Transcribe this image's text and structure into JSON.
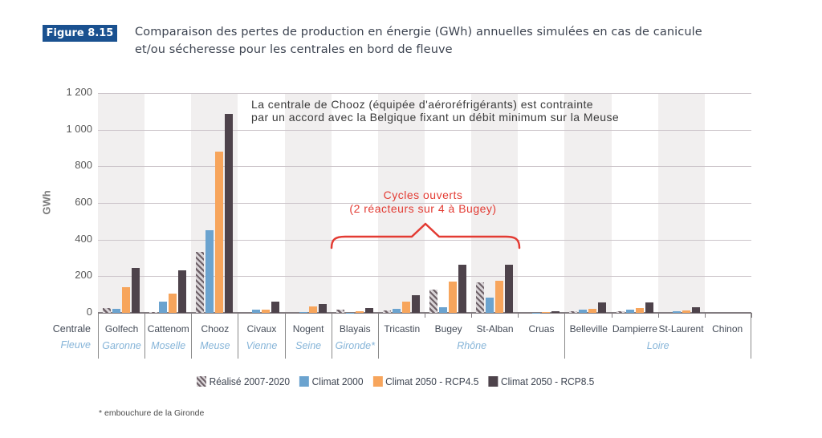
{
  "figure": {
    "label": "Figure 8.15",
    "title_line1": "Comparaison des pertes de production en énergie (GWh) annuelles simulées en cas de canicule",
    "title_line2": "et/ou sécheresse pour les centrales en bord de fleuve"
  },
  "annotations": {
    "chooz_line1": "La centrale de Chooz (équipée d'aéroréfrigérants) est contrainte",
    "chooz_line2": "par un accord avec la Belgique fixant un débit minimum sur la Meuse",
    "cycles_line1": "Cycles ouverts",
    "cycles_line2": "(2 réacteurs sur 4 à Bugey)"
  },
  "axis_header": {
    "top": "Centrale",
    "bottom": "Fleuve"
  },
  "footnote": "* embouchure de la Gironde",
  "colors": {
    "badge_blue": "#1a5190",
    "climat2000_blue": "#6ba3cf",
    "rcp45_orange": "#f7a55c",
    "rcp85_dark": "#4e434b",
    "hatch_dark": "#6e6168",
    "hatch_light": "#d9d4d7",
    "annotation_red": "#e33b33",
    "river_blue": "#85b4d8"
  },
  "chart_data": {
    "type": "bar",
    "ylabel": "GWh",
    "ylim": [
      0,
      1200
    ],
    "ytick_labels": [
      "1 200",
      "1 000",
      "800",
      "600",
      "400",
      "200",
      "0"
    ],
    "ytick_values": [
      1200,
      1000,
      800,
      600,
      400,
      200,
      0
    ],
    "categories": [
      "Golfech",
      "Cattenom",
      "Chooz",
      "Civaux",
      "Nogent",
      "Blayais",
      "Tricastin",
      "Bugey",
      "St-Alban",
      "Cruas",
      "Belleville",
      "Dampierre",
      "St-Laurent",
      "Chinon"
    ],
    "groups": [
      {
        "river": "Garonne",
        "start": 0,
        "count": 1
      },
      {
        "river": "Moselle",
        "start": 1,
        "count": 1
      },
      {
        "river": "Meuse",
        "start": 2,
        "count": 1
      },
      {
        "river": "Vienne",
        "start": 3,
        "count": 1
      },
      {
        "river": "Seine",
        "start": 4,
        "count": 1
      },
      {
        "river": "Gironde*",
        "start": 5,
        "count": 1
      },
      {
        "river": "Rhône",
        "start": 6,
        "count": 4
      },
      {
        "river": "Loire",
        "start": 10,
        "count": 4
      }
    ],
    "series": [
      {
        "name": "Réalisé 2007-2020",
        "style": "hatched",
        "values": [
          28,
          4,
          335,
          0,
          0,
          18,
          15,
          125,
          165,
          0,
          8,
          8,
          0,
          0
        ]
      },
      {
        "name": "Climat 2000",
        "style": "solid",
        "color": "#6ba3cf",
        "values": [
          22,
          60,
          450,
          17,
          5,
          2,
          20,
          30,
          85,
          2,
          18,
          17,
          10,
          0
        ]
      },
      {
        "name": "Climat 2050 - RCP4.5",
        "style": "solid",
        "color": "#f7a55c",
        "values": [
          140,
          105,
          880,
          19,
          34,
          7,
          60,
          170,
          175,
          6,
          23,
          26,
          15,
          0
        ]
      },
      {
        "name": "Climat 2050 - RCP8.5",
        "style": "solid",
        "color": "#4e434b",
        "values": [
          245,
          230,
          1085,
          60,
          49,
          28,
          98,
          265,
          265,
          10,
          55,
          58,
          30,
          0
        ]
      }
    ],
    "legend_position": "bottom",
    "grid": true
  }
}
